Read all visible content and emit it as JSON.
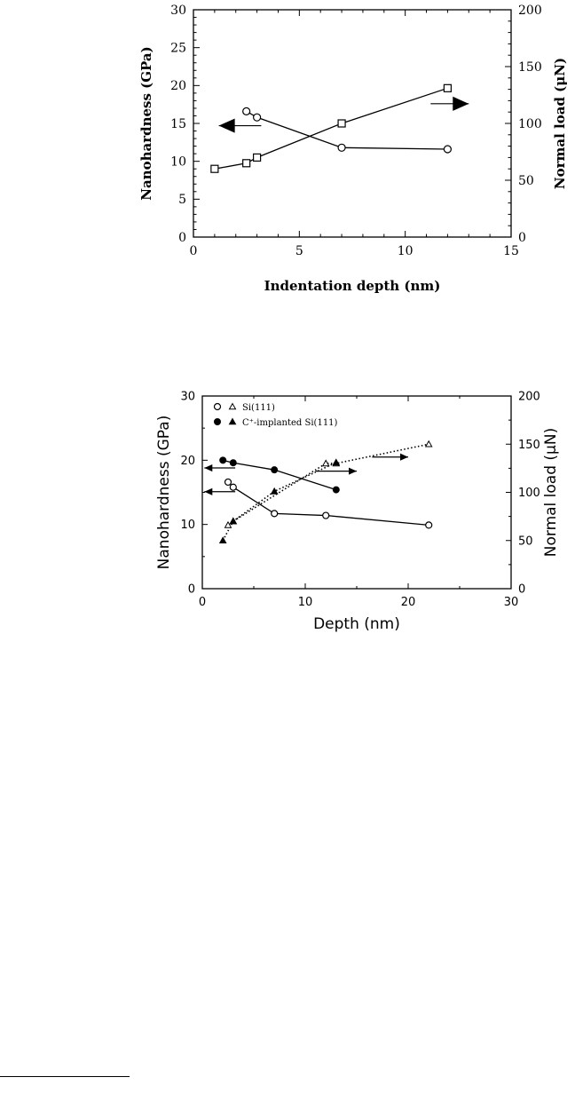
{
  "chart_data": [
    {
      "type": "line",
      "xlabel": "Indentation depth (nm)",
      "ylabel_left": "Nanohardness (GPa)",
      "ylabel_right": "Normal load (μN)",
      "xlim": [
        0,
        15
      ],
      "ylim_left": [
        0,
        30
      ],
      "ylim_right": [
        0,
        200
      ],
      "x_ticks": [
        "0",
        "5",
        "10",
        "15"
      ],
      "y_ticks_left": [
        "0",
        "5",
        "10",
        "15",
        "20",
        "25",
        "30"
      ],
      "y_ticks_right": [
        "0",
        "50",
        "100",
        "150",
        "200"
      ],
      "series": [
        {
          "axis": "left",
          "marker": "circle-open",
          "x": [
            2.5,
            3,
            7,
            12
          ],
          "y": [
            16.6,
            15.8,
            11.8,
            11.6
          ]
        },
        {
          "axis": "right",
          "marker": "square-open",
          "x": [
            1,
            2.5,
            3,
            7,
            12
          ],
          "y": [
            60,
            65,
            70,
            100,
            131
          ]
        }
      ],
      "arrows": [
        {
          "direction": "left",
          "x": [
            1.2,
            3.2
          ],
          "y": 14.7,
          "axis": "left"
        },
        {
          "direction": "right",
          "x": [
            11.2,
            13.0
          ],
          "y": 17.6,
          "axis": "left"
        }
      ]
    },
    {
      "type": "line",
      "xlabel": "Depth (nm)",
      "ylabel_left": "Nanohardness (GPa)",
      "ylabel_right": "Normal load (μN)",
      "xlim": [
        0,
        30
      ],
      "ylim_left": [
        0,
        30
      ],
      "ylim_right": [
        0,
        200
      ],
      "x_ticks": [
        "0",
        "10",
        "20",
        "30"
      ],
      "y_ticks_left": [
        "0",
        "10",
        "20",
        "30"
      ],
      "y_ticks_right": [
        "0",
        "50",
        "100",
        "150",
        "200"
      ],
      "legend": [
        {
          "markers": [
            "circle-open",
            "triangle-open"
          ],
          "label": "Si(111)"
        },
        {
          "markers": [
            "circle-filled",
            "triangle-filled"
          ],
          "label": "C⁺-implanted Si(111)"
        }
      ],
      "series": [
        {
          "axis": "left",
          "marker": "circle-open",
          "line": "solid",
          "x": [
            2.5,
            3,
            7,
            12,
            22
          ],
          "y": [
            16.6,
            15.8,
            11.7,
            11.4,
            9.9
          ]
        },
        {
          "axis": "left",
          "marker": "circle-filled",
          "line": "solid",
          "x": [
            2,
            3,
            7,
            13
          ],
          "y": [
            20,
            19.6,
            18.5,
            15.4
          ]
        },
        {
          "axis": "right",
          "marker": "triangle-open",
          "line": "dotted",
          "x": [
            2.5,
            3,
            12,
            13,
            22
          ],
          "y": [
            66,
            70,
            130,
            130,
            150
          ]
        },
        {
          "axis": "right",
          "marker": "triangle-filled",
          "line": "dotted",
          "x": [
            2,
            3,
            7,
            13
          ],
          "y": [
            50,
            70,
            101,
            131
          ]
        }
      ],
      "arrows": [
        {
          "direction": "left",
          "x": [
            0.2,
            3.2
          ],
          "y": 18.8,
          "axis": "left"
        },
        {
          "direction": "left",
          "x": [
            0.2,
            3.2
          ],
          "y": 15.1,
          "axis": "left"
        },
        {
          "direction": "right",
          "x": [
            11,
            15
          ],
          "y": 18.3,
          "axis": "left"
        },
        {
          "direction": "right",
          "x": [
            16.5,
            20
          ],
          "y": 20.5,
          "axis": "left"
        }
      ]
    }
  ]
}
